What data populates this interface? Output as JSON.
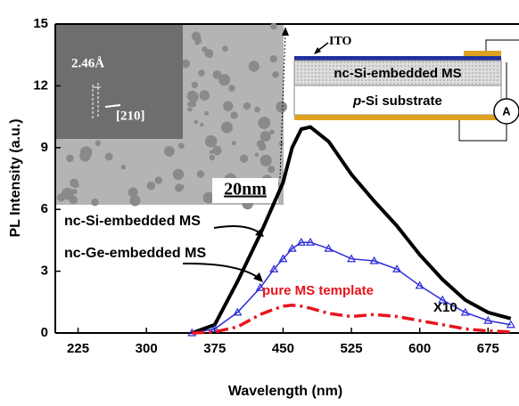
{
  "chart_data": {
    "type": "line",
    "x_label": "Wavelength (nm)",
    "y_label": "PL Intensity (a.u.)",
    "x": [
      350,
      375,
      400,
      425,
      440,
      450,
      460,
      470,
      480,
      500,
      525,
      550,
      575,
      600,
      625,
      650,
      675,
      700
    ],
    "series": [
      {
        "name": "nc-Si-embedded MS",
        "color": "#000000",
        "style": "solid",
        "values": [
          0,
          0.4,
          2.5,
          4.8,
          6.3,
          7.3,
          9.0,
          9.9,
          10.0,
          9.3,
          7.7,
          6.4,
          5.2,
          3.8,
          2.6,
          1.6,
          1.0,
          0.7
        ]
      },
      {
        "name": "nc-Ge-embedded MS",
        "color": "#2a2ad8",
        "style": "triangles",
        "values": [
          0,
          0.2,
          1.0,
          2.2,
          3.1,
          3.6,
          4.1,
          4.4,
          4.4,
          4.1,
          3.6,
          3.5,
          3.1,
          2.3,
          1.6,
          1.0,
          0.6,
          0.4
        ]
      },
      {
        "name": "pure MS template",
        "color": "#e8141c",
        "style": "dashdot",
        "values": [
          0,
          0.05,
          0.3,
          0.9,
          1.15,
          1.3,
          1.35,
          1.3,
          1.2,
          0.95,
          0.8,
          0.9,
          0.8,
          0.6,
          0.4,
          0.2,
          0.1,
          0.05
        ]
      }
    ],
    "annotation": "X10",
    "xlim": [
      200,
      707
    ],
    "xticks": [
      225,
      300,
      375,
      450,
      525,
      600,
      675
    ],
    "ylim": [
      0,
      15
    ],
    "yticks": [
      0,
      3,
      6,
      9,
      12,
      15
    ],
    "inset": {
      "spacing": "2.46Å",
      "direction": "[210]",
      "scale_bar": "20nm",
      "ito": "ITO",
      "layer": "nc-Si-embedded MS",
      "substrate_italic": "p",
      "substrate": "-Si substrate",
      "meter": "A"
    }
  }
}
